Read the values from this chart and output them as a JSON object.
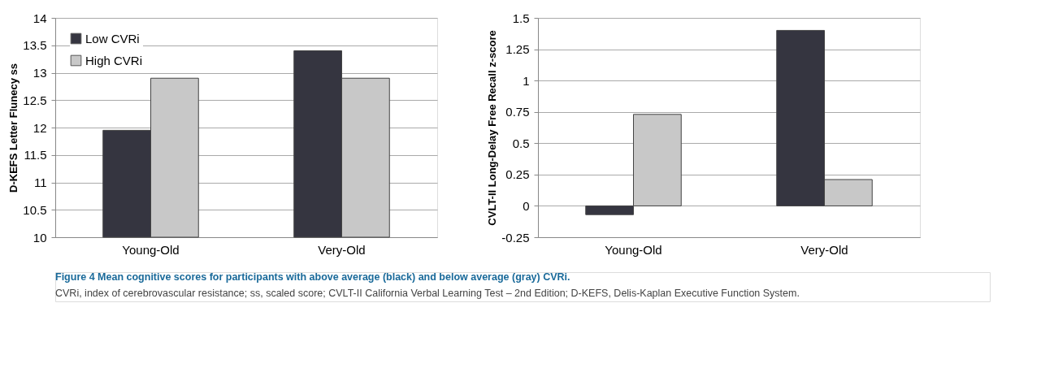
{
  "chart_data": [
    {
      "type": "bar",
      "categories": [
        "Young-Old",
        "Very-Old"
      ],
      "ylabel": "D-KEFS Letter Flunecy ss",
      "ylim": [
        10,
        14
      ],
      "yticks": [
        10,
        10.5,
        11,
        11.5,
        12,
        12.5,
        13,
        13.5,
        14
      ],
      "grid": "y",
      "legend": "top left",
      "series": [
        {
          "name": "Low CVRi",
          "color": "#353540",
          "values": [
            11.95,
            13.4
          ]
        },
        {
          "name": "High CVRi",
          "color": "#c8c8c8",
          "values": [
            12.9,
            12.9
          ]
        }
      ],
      "annotations": [
        "Figure 4 Mean cognitive scores for participants with above average (black) and below average (gray) CVRi.",
        "CVRi, index of cerebrovascular resistance; ss, scaled score; CVLT-II California Verbal Learning Test – 2nd Edition; D-KEFS, Delis-Kaplan Executive Function System."
      ]
    },
    {
      "type": "bar",
      "categories": [
        "Young-Old",
        "Very-Old"
      ],
      "ylabel": "CVLT-II Long-Delay Free Recall z-score",
      "ylim": [
        -0.25,
        1.5
      ],
      "yticks": [
        -0.25,
        0,
        0.25,
        0.5,
        0.75,
        1,
        1.25,
        1.5
      ],
      "grid": "y",
      "legend": "top left",
      "series": [
        {
          "name": "Low CVRi",
          "color": "#353540",
          "values": [
            -0.07,
            1.4
          ]
        },
        {
          "name": "High CVRi",
          "color": "#c8c8c8",
          "values": [
            0.73,
            0.21
          ]
        }
      ]
    }
  ]
}
